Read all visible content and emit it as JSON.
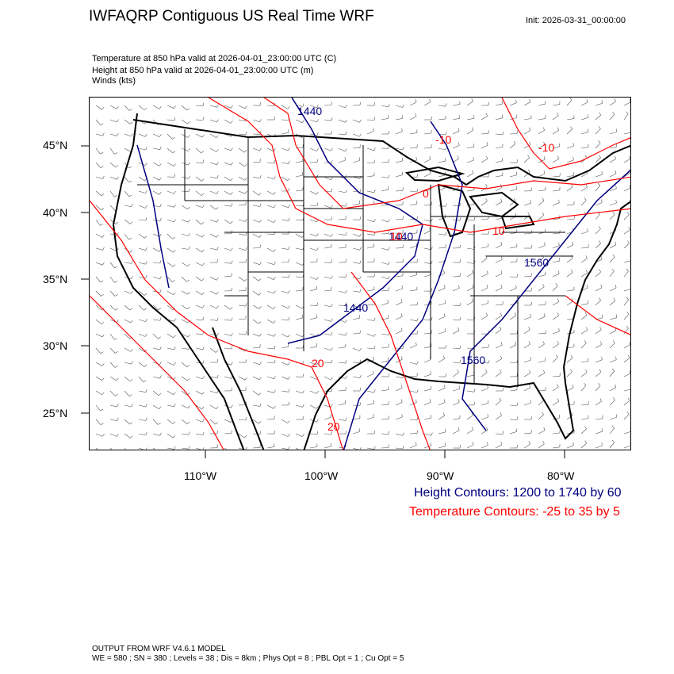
{
  "header": {
    "title": "IWFAQRP Contiguous US Real Time WRF",
    "init": "Init: 2026-03-31_00:00:00"
  },
  "subtitle": {
    "line1": "Temperature at 850 hPa valid at 2026-04-01_23:00:00 UTC   (C)",
    "line2": "Height at 850 hPa valid at 2026-04-01_23:00:00 UTC   (m)",
    "line3": "Winds   (kts)"
  },
  "map": {
    "height_contour_color": "#000080",
    "temp_contour_color": "#ff0000",
    "height_labels": [
      "1440",
      "1440",
      "1440",
      "1560",
      "1560"
    ],
    "temp_labels": [
      "-10",
      "-10",
      "0",
      "10",
      "10",
      "20",
      "20"
    ]
  },
  "axes": {
    "lat_labels": [
      "45°N",
      "40°N",
      "35°N",
      "30°N",
      "25°N"
    ],
    "lon_labels": [
      "110°W",
      "100°W",
      "90°W",
      "80°W"
    ]
  },
  "legend": {
    "height": "Height Contours: 1200 to 1740 by 60",
    "temperature": "Temperature Contours: -25 to 35 by 5"
  },
  "footer": {
    "line1": "OUTPUT FROM WRF V4.6.1 MODEL",
    "line2": "WE = 580 ; SN = 380 ; Levels = 38 ; Dis = 8km ; Phys Opt = 8 ; PBL Opt = 1 ; Cu Opt = 5"
  }
}
